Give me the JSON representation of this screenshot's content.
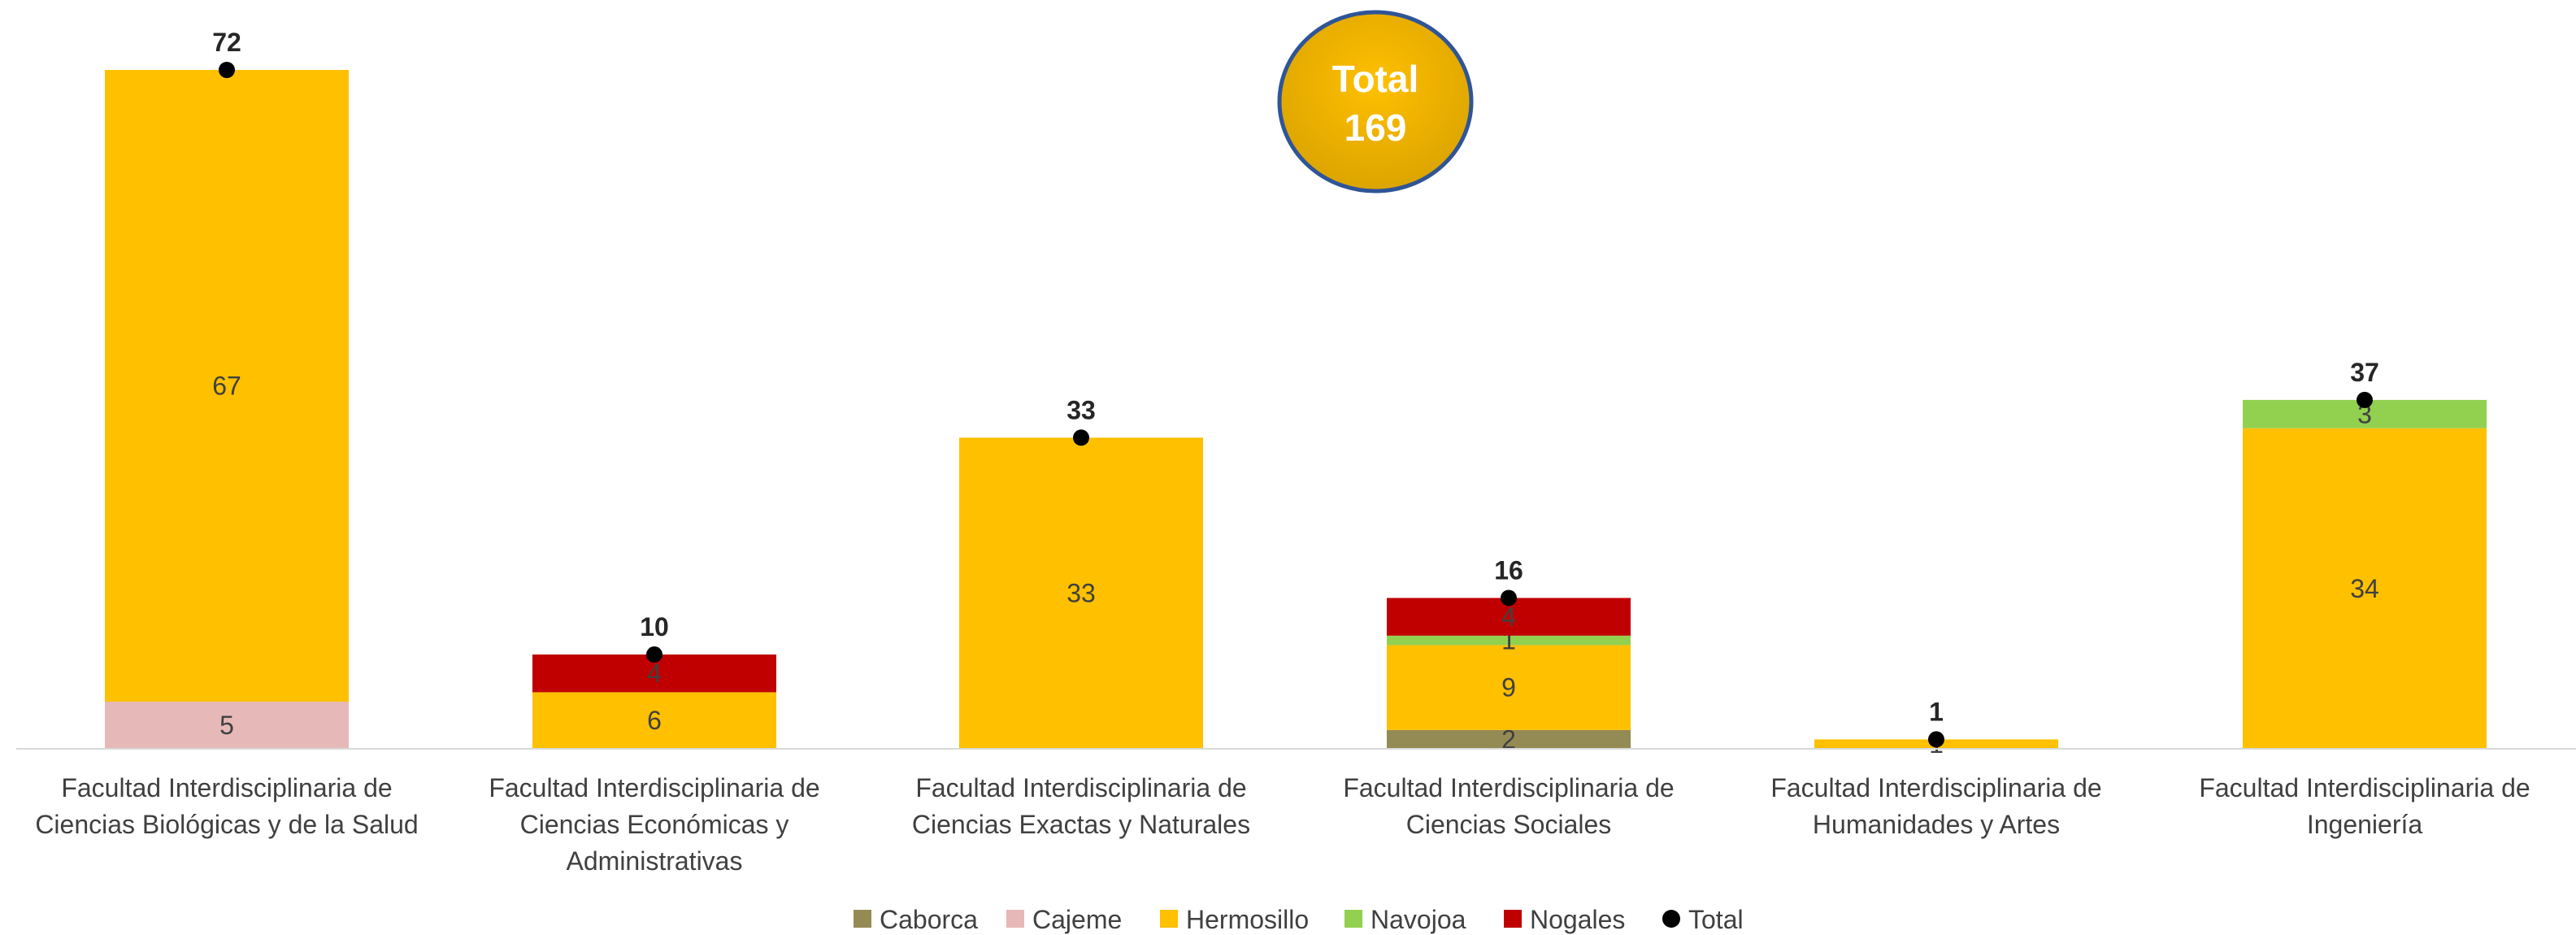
{
  "chart_data": {
    "type": "bar",
    "stacked": true,
    "categories": [
      [
        "Facultad Interdisciplinaria de",
        "Ciencias Biológicas y de la Salud"
      ],
      [
        "Facultad Interdisciplinaria de",
        "Ciencias Económicas y",
        "Administrativas"
      ],
      [
        "Facultad Interdisciplinaria de",
        "Ciencias Exactas y Naturales"
      ],
      [
        "Facultad Interdisciplinaria de",
        "Ciencias Sociales"
      ],
      [
        "Facultad Interdisciplinaria de",
        "Humanidades y Artes"
      ],
      [
        "Facultad Interdisciplinaria de",
        "Ingeniería"
      ]
    ],
    "series": [
      {
        "name": "Caborca",
        "color": "#948A54",
        "values": [
          0,
          0,
          0,
          2,
          0,
          0
        ]
      },
      {
        "name": "Cajeme",
        "color": "#E6B9B8",
        "values": [
          5,
          0,
          0,
          0,
          0,
          0
        ]
      },
      {
        "name": "Hermosillo",
        "color": "#FFC000",
        "values": [
          67,
          6,
          33,
          9,
          1,
          34
        ]
      },
      {
        "name": "Navojoa",
        "color": "#92D050",
        "values": [
          0,
          0,
          0,
          1,
          0,
          3
        ]
      },
      {
        "name": "Nogales",
        "color": "#C00000",
        "values": [
          0,
          4,
          0,
          4,
          0,
          0
        ]
      }
    ],
    "totals": {
      "name": "Total",
      "color": "#000000",
      "values": [
        72,
        10,
        33,
        16,
        1,
        37
      ]
    },
    "ylim": [
      0,
      75
    ],
    "legend": "bottom",
    "grid": false,
    "title": "",
    "xlabel": "",
    "ylabel": ""
  },
  "total_bubble": {
    "label": "Total",
    "value": "169",
    "fill": "#FFC000",
    "border": "#2F5597"
  }
}
